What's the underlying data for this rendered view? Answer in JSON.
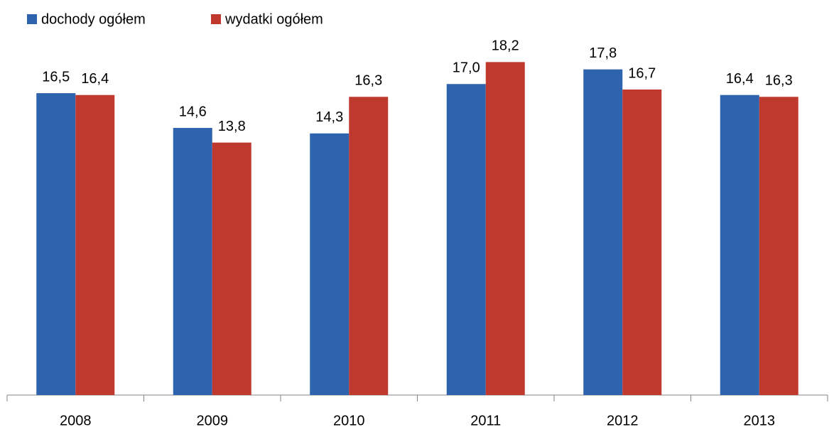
{
  "chart_data": {
    "type": "bar",
    "categories": [
      "2008",
      "2009",
      "2010",
      "2011",
      "2012",
      "2013"
    ],
    "series": [
      {
        "name": "dochody ogółem",
        "color": "#2e63ae",
        "values": [
          16.5,
          14.6,
          14.3,
          17.0,
          17.8,
          16.4
        ],
        "value_labels": [
          "16,5",
          "14,6",
          "14,3",
          "17,0",
          "17,8",
          "16,4"
        ]
      },
      {
        "name": "wydatki ogółem",
        "color": "#c0392f",
        "values": [
          16.4,
          13.8,
          16.3,
          18.2,
          16.7,
          16.3
        ],
        "value_labels": [
          "16,4",
          "13,8",
          "16,3",
          "18,2",
          "16,7",
          "16,3"
        ]
      }
    ],
    "ylim": [
      0,
      20
    ],
    "legend": "top-left"
  }
}
